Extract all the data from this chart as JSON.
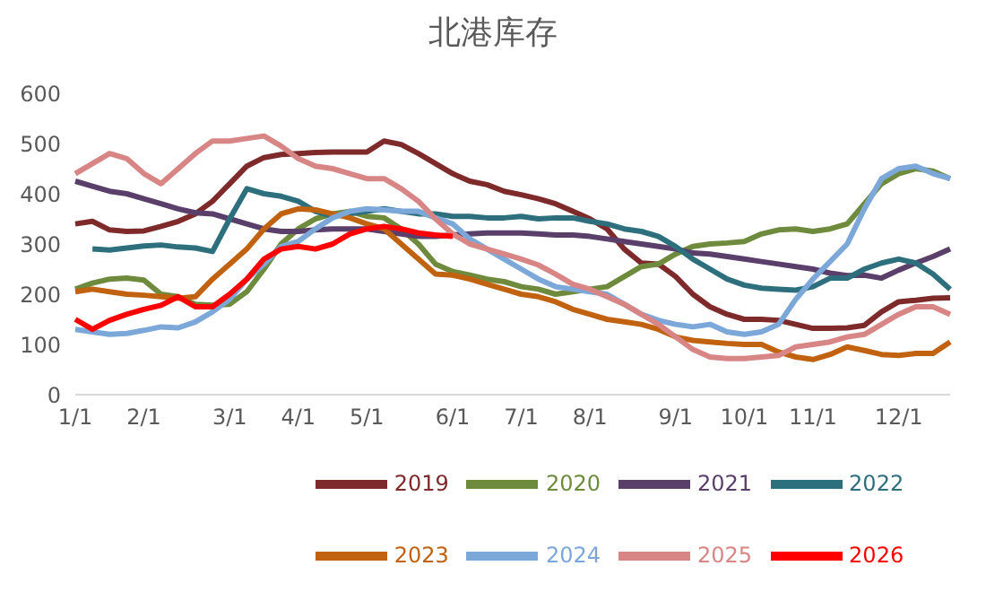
{
  "chart_data": {
    "type": "line",
    "title": "北港库存",
    "categories": [
      "1/1",
      null,
      null,
      null,
      "2/1",
      null,
      null,
      null,
      null,
      "3/1",
      null,
      null,
      null,
      "4/1",
      null,
      null,
      null,
      "5/1",
      null,
      null,
      null,
      null,
      "6/1",
      null,
      null,
      null,
      "7/1",
      null,
      null,
      null,
      "8/1",
      null,
      null,
      null,
      null,
      "9/1",
      null,
      null,
      null,
      "10/1",
      null,
      null,
      null,
      "11/1",
      null,
      null,
      null,
      null,
      "12/1",
      null,
      null,
      null
    ],
    "series": [
      {
        "name": "2019",
        "color": "#7f2a2a",
        "values": [
          340,
          345,
          328,
          325,
          326,
          335,
          345,
          360,
          385,
          420,
          455,
          472,
          478,
          480,
          482,
          483,
          483,
          483,
          505,
          498,
          480,
          460,
          440,
          425,
          418,
          405,
          398,
          390,
          380,
          365,
          350,
          330,
          290,
          262,
          260,
          235,
          200,
          175,
          160,
          150,
          150,
          148,
          140,
          132,
          132,
          133,
          138,
          165,
          185,
          188,
          192,
          193
        ]
      },
      {
        "name": "2020",
        "color": "#6e8b3d",
        "values": [
          210,
          222,
          230,
          232,
          228,
          200,
          195,
          180,
          178,
          180,
          205,
          250,
          300,
          330,
          350,
          360,
          365,
          355,
          352,
          330,
          300,
          260,
          245,
          238,
          230,
          225,
          215,
          210,
          200,
          205,
          210,
          215,
          235,
          255,
          260,
          280,
          295,
          300,
          302,
          305,
          320,
          328,
          330,
          325,
          330,
          340,
          380,
          420,
          440,
          450,
          445,
          430
        ]
      },
      {
        "name": "2021",
        "color": "#5a3f6b",
        "values": [
          425,
          415,
          405,
          400,
          390,
          380,
          370,
          362,
          360,
          350,
          340,
          330,
          325,
          325,
          328,
          330,
          330,
          330,
          325,
          320,
          315,
          315,
          318,
          320,
          322,
          322,
          322,
          320,
          318,
          318,
          315,
          310,
          305,
          300,
          295,
          290,
          282,
          280,
          275,
          270,
          265,
          260,
          255,
          250,
          242,
          237,
          238,
          232,
          248,
          262,
          275,
          290
        ]
      },
      {
        "name": "2022",
        "color": "#2e6f7e",
        "values": [
          null,
          290,
          288,
          292,
          296,
          298,
          294,
          292,
          285,
          350,
          410,
          400,
          395,
          385,
          365,
          355,
          360,
          365,
          370,
          365,
          360,
          360,
          355,
          355,
          352,
          352,
          355,
          350,
          352,
          352,
          345,
          340,
          330,
          325,
          315,
          295,
          270,
          250,
          230,
          218,
          212,
          210,
          208,
          215,
          232,
          232,
          250,
          262,
          270,
          262,
          240,
          210
        ]
      },
      {
        "name": "2023",
        "color": "#c0620f",
        "values": [
          205,
          210,
          205,
          200,
          198,
          195,
          192,
          195,
          230,
          260,
          290,
          330,
          360,
          370,
          368,
          360,
          352,
          340,
          330,
          300,
          270,
          240,
          238,
          230,
          220,
          210,
          200,
          195,
          185,
          170,
          160,
          150,
          145,
          140,
          130,
          115,
          108,
          105,
          102,
          100,
          100,
          85,
          75,
          70,
          80,
          95,
          88,
          80,
          78,
          82,
          82,
          105
        ]
      },
      {
        "name": "2024",
        "color": "#7ba7d9",
        "values": [
          130,
          125,
          120,
          122,
          128,
          135,
          133,
          145,
          165,
          190,
          230,
          260,
          295,
          305,
          330,
          352,
          365,
          370,
          368,
          365,
          365,
          352,
          340,
          310,
          290,
          270,
          250,
          230,
          215,
          210,
          205,
          200,
          180,
          160,
          148,
          140,
          135,
          140,
          125,
          120,
          125,
          140,
          190,
          230,
          265,
          300,
          370,
          430,
          450,
          455,
          440,
          430
        ]
      },
      {
        "name": "2025",
        "color": "#d88585",
        "values": [
          440,
          460,
          480,
          470,
          440,
          420,
          450,
          480,
          505,
          505,
          510,
          515,
          495,
          470,
          455,
          450,
          440,
          430,
          430,
          410,
          385,
          350,
          320,
          300,
          290,
          280,
          270,
          258,
          240,
          220,
          210,
          195,
          180,
          160,
          140,
          115,
          90,
          75,
          72,
          72,
          75,
          78,
          95,
          100,
          105,
          115,
          120,
          140,
          160,
          175,
          175,
          160
        ]
      },
      {
        "name": "2026",
        "color": "#ff0000",
        "values": [
          150,
          130,
          148,
          160,
          170,
          178,
          195,
          175,
          175,
          200,
          230,
          270,
          290,
          295,
          290,
          300,
          320,
          330,
          335,
          330,
          322,
          318,
          315,
          null,
          null,
          null,
          null,
          null,
          null,
          null,
          null,
          null,
          null,
          null,
          null,
          null,
          null,
          null,
          null,
          null,
          null,
          null,
          null,
          null,
          null,
          null,
          null,
          null,
          null,
          null,
          null,
          null
        ]
      }
    ],
    "ylim": [
      0,
      600
    ],
    "yticks": [
      0,
      100,
      200,
      300,
      400,
      500,
      600
    ],
    "legend": "bottom",
    "marker": "none",
    "line_style": "solid"
  }
}
